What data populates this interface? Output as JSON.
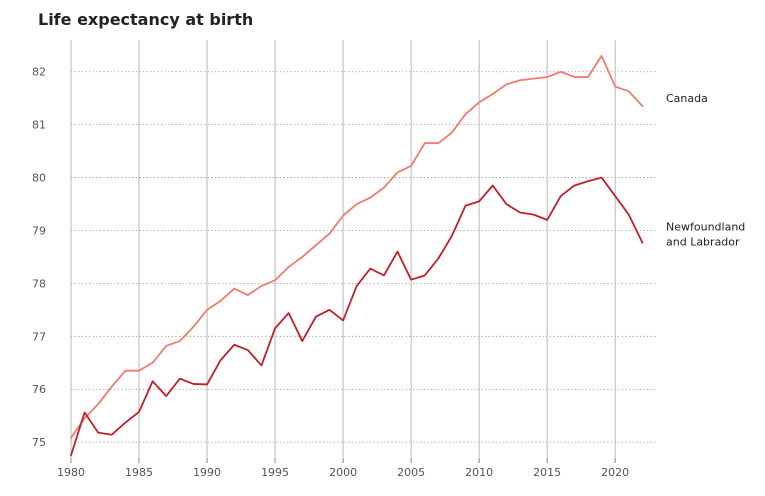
{
  "chart_data": {
    "type": "line",
    "title": "Life expectancy at birth",
    "xlabel": "",
    "ylabel": "",
    "xlim": [
      1980,
      2023
    ],
    "ylim": [
      74.7,
      82.6
    ],
    "x_ticks": [
      1980,
      1985,
      1990,
      1995,
      2000,
      2005,
      2010,
      2015,
      2020
    ],
    "y_ticks": [
      75,
      76,
      77,
      78,
      79,
      80,
      81,
      82
    ],
    "grid": {
      "x": "solid",
      "y": "dotted"
    },
    "series": [
      {
        "name": "Canada",
        "label_lines": [
          "Canada"
        ],
        "color": "#f07b6e",
        "x": [
          1980,
          1981,
          1982,
          1983,
          1984,
          1985,
          1986,
          1987,
          1988,
          1989,
          1990,
          1991,
          1992,
          1993,
          1994,
          1995,
          1996,
          1997,
          1998,
          1999,
          2000,
          2001,
          2002,
          2003,
          2004,
          2005,
          2006,
          2007,
          2008,
          2009,
          2010,
          2011,
          2012,
          2013,
          2014,
          2015,
          2016,
          2017,
          2018,
          2019,
          2020,
          2021,
          2022
        ],
        "values": [
          75.08,
          75.45,
          75.72,
          76.05,
          76.35,
          76.35,
          76.5,
          76.82,
          76.91,
          77.18,
          77.5,
          77.67,
          77.9,
          77.78,
          77.95,
          78.06,
          78.31,
          78.5,
          78.72,
          78.94,
          79.28,
          79.5,
          79.62,
          79.81,
          80.1,
          80.22,
          80.65,
          80.65,
          80.85,
          81.2,
          81.42,
          81.58,
          81.76,
          81.84,
          81.87,
          81.9,
          82.0,
          81.9,
          81.9,
          82.3,
          81.72,
          81.63,
          81.35
        ]
      },
      {
        "name": "Newfoundland and Labrador",
        "label_lines": [
          "Newfoundland",
          "and Labrador"
        ],
        "color": "#c0202a",
        "x": [
          1980,
          1981,
          1982,
          1983,
          1984,
          1985,
          1986,
          1987,
          1988,
          1989,
          1990,
          1991,
          1992,
          1993,
          1994,
          1995,
          1996,
          1997,
          1998,
          1999,
          2000,
          2001,
          2002,
          2003,
          2004,
          2005,
          2006,
          2007,
          2008,
          2009,
          2010,
          2011,
          2012,
          2013,
          2014,
          2015,
          2016,
          2017,
          2018,
          2019,
          2020,
          2021,
          2022
        ],
        "values": [
          74.75,
          75.56,
          75.18,
          75.14,
          75.37,
          75.57,
          76.15,
          75.87,
          76.2,
          76.1,
          76.09,
          76.55,
          76.84,
          76.74,
          76.45,
          77.15,
          77.44,
          76.91,
          77.37,
          77.5,
          77.3,
          77.95,
          78.28,
          78.15,
          78.6,
          78.07,
          78.15,
          78.47,
          78.9,
          79.47,
          79.55,
          79.85,
          79.5,
          79.34,
          79.3,
          79.2,
          79.65,
          79.85,
          79.93,
          80.0,
          79.65,
          79.3,
          78.77
        ]
      }
    ]
  }
}
